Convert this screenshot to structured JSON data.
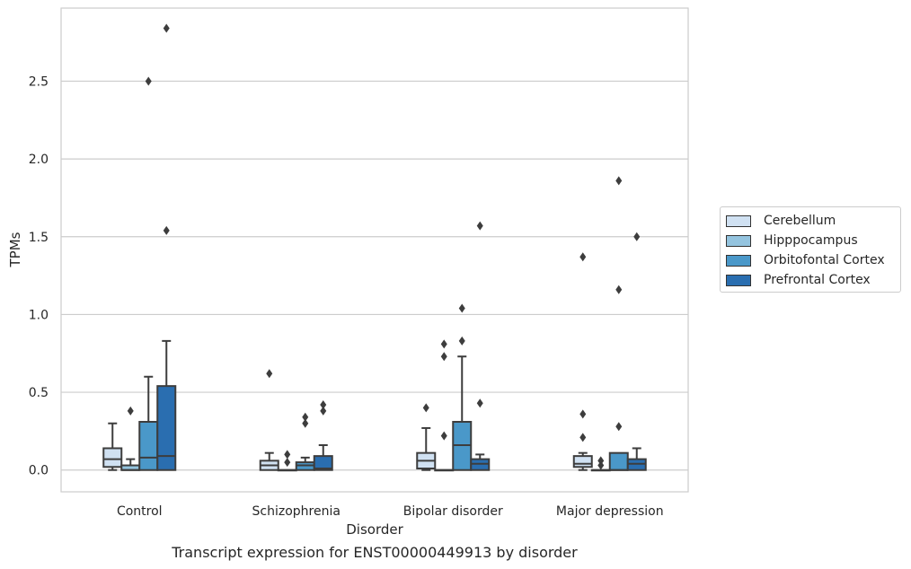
{
  "chart_data": {
    "type": "box",
    "caption": "Transcript expression for ENST00000449913 by disorder",
    "xlabel": "Disorder",
    "ylabel": "TPMs",
    "ylim": [
      -0.14,
      2.97
    ],
    "yticks": [
      "0.0",
      "0.5",
      "1.0",
      "1.5",
      "2.0",
      "2.5"
    ],
    "ytick_values": [
      0.0,
      0.5,
      1.0,
      1.5,
      2.0,
      2.5
    ],
    "grid": "horizontal",
    "legend_position": "right",
    "categories": [
      "Control",
      "Schizophrenia",
      "Bipolar disorder",
      "Major depression"
    ],
    "series": [
      {
        "name": "Cerebellum",
        "color": "#d0e1f2",
        "boxes": [
          {
            "q1": 0.02,
            "median": 0.07,
            "q3": 0.14,
            "whisker_low": 0.0,
            "whisker_high": 0.3,
            "outliers": []
          },
          {
            "q1": 0.0,
            "median": 0.03,
            "q3": 0.06,
            "whisker_low": 0.0,
            "whisker_high": 0.11,
            "outliers": [
              0.62
            ]
          },
          {
            "q1": 0.01,
            "median": 0.06,
            "q3": 0.11,
            "whisker_low": 0.0,
            "whisker_high": 0.27,
            "outliers": [
              0.4
            ]
          },
          {
            "q1": 0.02,
            "median": 0.04,
            "q3": 0.09,
            "whisker_low": 0.0,
            "whisker_high": 0.11,
            "outliers": [
              0.21,
              0.36,
              1.37
            ]
          }
        ]
      },
      {
        "name": "Hipppocampus",
        "color": "#94c4df",
        "boxes": [
          {
            "q1": 0.0,
            "median": 0.0,
            "q3": 0.03,
            "whisker_low": 0.0,
            "whisker_high": 0.07,
            "outliers": [
              0.38
            ]
          },
          {
            "q1": 0.0,
            "median": 0.0,
            "q3": 0.0,
            "whisker_low": 0.0,
            "whisker_high": 0.0,
            "outliers": [
              0.05,
              0.1
            ]
          },
          {
            "q1": 0.0,
            "median": 0.0,
            "q3": 0.0,
            "whisker_low": 0.0,
            "whisker_high": 0.0,
            "outliers": [
              0.22,
              0.73,
              0.81
            ]
          },
          {
            "q1": 0.0,
            "median": 0.0,
            "q3": 0.0,
            "whisker_low": 0.0,
            "whisker_high": 0.0,
            "outliers": [
              0.03,
              0.06
            ]
          }
        ]
      },
      {
        "name": "Orbitofontal Cortex",
        "color": "#4a98c9",
        "boxes": [
          {
            "q1": 0.0,
            "median": 0.08,
            "q3": 0.31,
            "whisker_low": 0.0,
            "whisker_high": 0.6,
            "outliers": [
              2.5
            ]
          },
          {
            "q1": 0.0,
            "median": 0.03,
            "q3": 0.05,
            "whisker_low": 0.0,
            "whisker_high": 0.08,
            "outliers": [
              0.3,
              0.34
            ]
          },
          {
            "q1": 0.0,
            "median": 0.16,
            "q3": 0.31,
            "whisker_low": 0.0,
            "whisker_high": 0.73,
            "outliers": [
              0.83,
              1.04
            ]
          },
          {
            "q1": 0.0,
            "median": 0.0,
            "q3": 0.11,
            "whisker_low": 0.0,
            "whisker_high": 0.11,
            "outliers": [
              0.28,
              1.16,
              1.86
            ]
          }
        ]
      },
      {
        "name": "Prefrontal Cortex",
        "color": "#2a6eb0",
        "boxes": [
          {
            "q1": 0.0,
            "median": 0.09,
            "q3": 0.54,
            "whisker_low": 0.0,
            "whisker_high": 0.83,
            "outliers": [
              1.54,
              2.84
            ]
          },
          {
            "q1": 0.0,
            "median": 0.01,
            "q3": 0.09,
            "whisker_low": 0.0,
            "whisker_high": 0.16,
            "outliers": [
              0.38,
              0.42
            ]
          },
          {
            "q1": 0.0,
            "median": 0.04,
            "q3": 0.07,
            "whisker_low": 0.0,
            "whisker_high": 0.1,
            "outliers": [
              0.43,
              1.57
            ]
          },
          {
            "q1": 0.0,
            "median": 0.04,
            "q3": 0.07,
            "whisker_low": 0.0,
            "whisker_high": 0.14,
            "outliers": [
              1.5
            ]
          }
        ]
      }
    ]
  }
}
